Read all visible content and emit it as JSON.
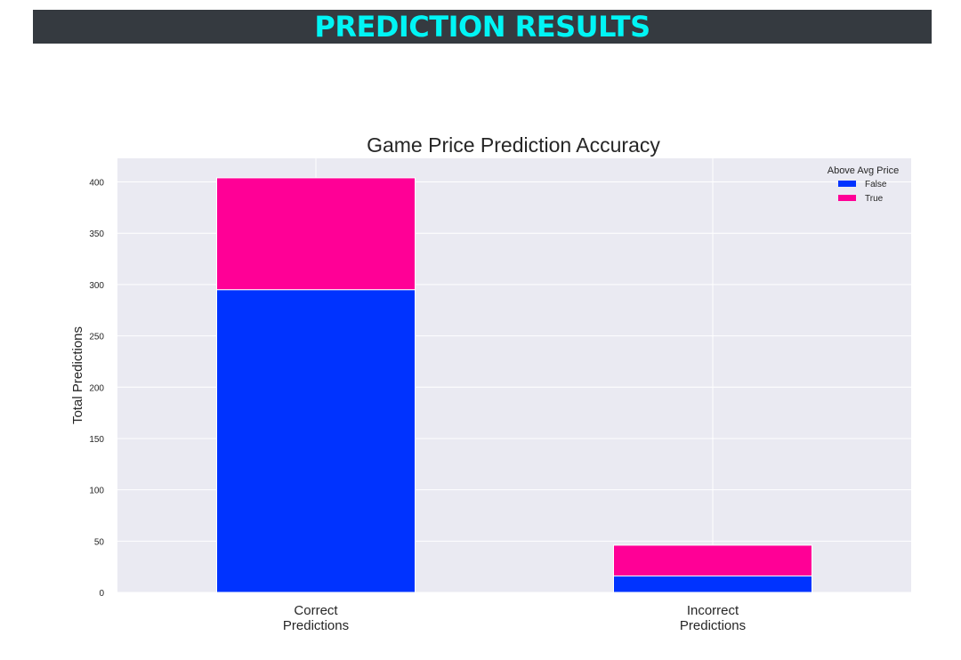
{
  "header": {
    "banner_title": "PREDICTION RESULTS"
  },
  "colors": {
    "banner_bg": "#353a40",
    "banner_text": "#00f5f5",
    "plot_bg": "#eaeaf2",
    "grid": "#ffffff"
  },
  "chart_data": {
    "type": "bar",
    "stacked": true,
    "title": "Game Price Prediction Accuracy",
    "xlabel": "",
    "ylabel": "Total Predictions",
    "categories": [
      [
        "Correct",
        "Predictions"
      ],
      [
        "Incorrect",
        "Predictions"
      ]
    ],
    "series": [
      {
        "name": "False",
        "color": "#0033ff",
        "values": [
          295,
          16
        ]
      },
      {
        "name": "True",
        "color": "#ff0096",
        "values": [
          109,
          30
        ]
      }
    ],
    "ylim": [
      0,
      423
    ],
    "yticks": [
      0,
      50,
      100,
      150,
      200,
      250,
      300,
      350,
      400
    ],
    "grid": true,
    "legend": {
      "title": "Above Avg Price",
      "placement": "top-right"
    }
  }
}
